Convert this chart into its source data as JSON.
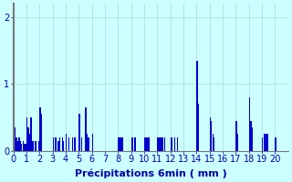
{
  "xlabel": "Précipitations 6min ( mm )",
  "background_color": "#ccffff",
  "bar_color": "#0000cc",
  "grid_color": "#b0dede",
  "ylim": [
    0,
    2.2
  ],
  "yticks": [
    0,
    1,
    2
  ],
  "values": [
    0.35,
    0.35,
    0.2,
    0.15,
    0.2,
    0.15,
    0.1,
    0.15,
    0.1,
    0.1,
    0.5,
    0.35,
    0.25,
    0.5,
    0.15,
    0.15,
    0.15,
    0.15,
    0.0,
    0.15,
    0.65,
    0.55,
    0.0,
    0.0,
    0.0,
    0.0,
    0.0,
    0.0,
    0.0,
    0.0,
    0.2,
    0.0,
    0.2,
    0.0,
    0.15,
    0.2,
    0.0,
    0.2,
    0.15,
    0.0,
    0.25,
    0.0,
    0.2,
    0.0,
    0.0,
    0.2,
    0.2,
    0.2,
    0.0,
    0.0,
    0.55,
    0.0,
    0.2,
    0.0,
    0.0,
    0.65,
    0.25,
    0.2,
    0.0,
    0.0,
    0.25,
    0.0,
    0.0,
    0.0,
    0.0,
    0.0,
    0.0,
    0.0,
    0.0,
    0.0,
    0.0,
    0.0,
    0.0,
    0.0,
    0.0,
    0.0,
    0.0,
    0.0,
    0.0,
    0.0,
    0.2,
    0.2,
    0.2,
    0.2,
    0.0,
    0.0,
    0.0,
    0.0,
    0.0,
    0.0,
    0.2,
    0.2,
    0.2,
    0.2,
    0.0,
    0.0,
    0.0,
    0.0,
    0.0,
    0.0,
    0.2,
    0.2,
    0.2,
    0.2,
    0.0,
    0.0,
    0.0,
    0.0,
    0.0,
    0.0,
    0.2,
    0.2,
    0.2,
    0.2,
    0.2,
    0.2,
    0.0,
    0.0,
    0.0,
    0.0,
    0.2,
    0.2,
    0.0,
    0.2,
    0.0,
    0.2,
    0.0,
    0.0,
    0.0,
    0.0,
    0.0,
    0.0,
    0.0,
    0.0,
    0.0,
    0.0,
    0.0,
    0.0,
    0.0,
    0.0,
    1.35,
    0.7,
    0.0,
    0.0,
    0.0,
    0.0,
    0.0,
    0.0,
    0.0,
    0.0,
    0.5,
    0.45,
    0.25,
    0.2,
    0.0,
    0.0,
    0.0,
    0.0,
    0.0,
    0.0,
    0.0,
    0.0,
    0.0,
    0.0,
    0.0,
    0.0,
    0.0,
    0.0,
    0.0,
    0.0,
    0.45,
    0.25,
    0.0,
    0.0,
    0.0,
    0.0,
    0.0,
    0.0,
    0.0,
    0.0,
    0.8,
    0.45,
    0.35,
    0.0,
    0.0,
    0.0,
    0.0,
    0.0,
    0.0,
    0.0,
    0.2,
    0.25,
    0.25,
    0.25,
    0.25,
    0.0,
    0.0,
    0.0,
    0.0,
    0.0,
    0.2,
    0.0,
    0.0,
    0.0,
    0.0,
    0.0,
    0.0,
    0.0,
    0.0,
    0.0
  ],
  "xtick_positions": [
    0,
    10,
    20,
    30,
    40,
    50,
    60,
    70,
    80,
    90,
    100,
    110,
    120,
    130,
    140,
    150,
    160,
    170,
    180,
    190,
    200
  ],
  "xtick_labels": [
    "0",
    "1",
    "2",
    "3",
    "4",
    "5",
    "6",
    "7",
    "8",
    "9",
    "10",
    "11",
    "12",
    "13",
    "14",
    "15",
    "16",
    "17",
    "18",
    "19",
    "20"
  ],
  "font_color": "#0000aa",
  "font_size": 7,
  "label_fontsize": 8
}
